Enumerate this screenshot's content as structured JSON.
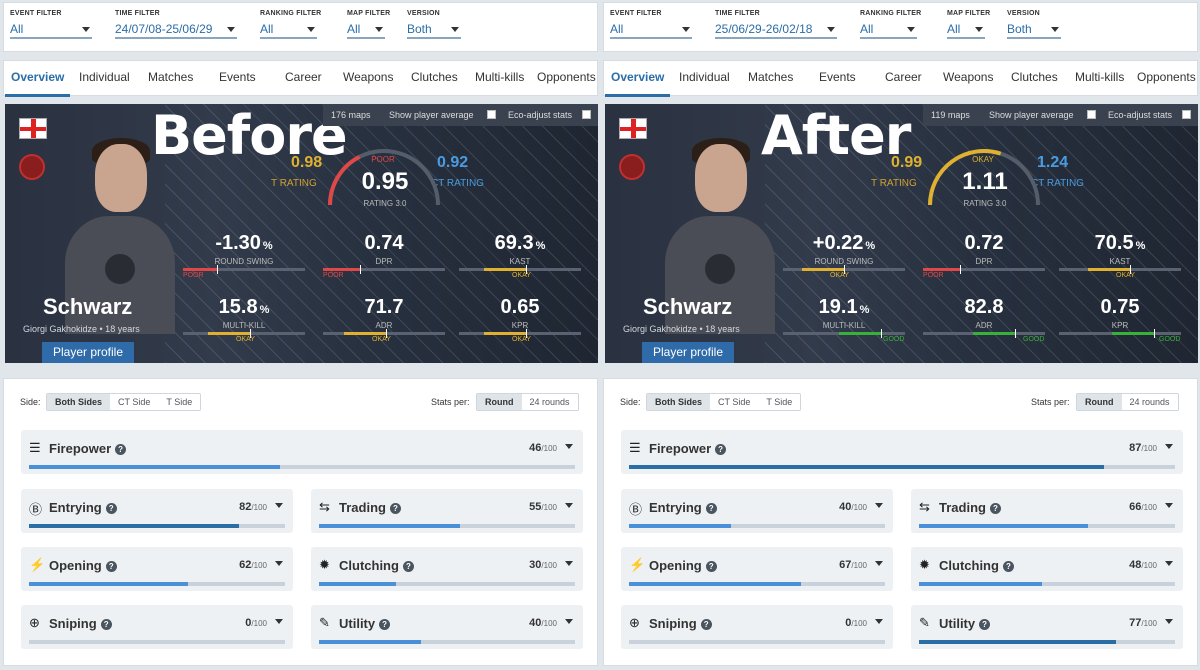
{
  "panels": [
    {
      "overlay": "Before",
      "filters": [
        {
          "label": "EVENT FILTER",
          "value": "All"
        },
        {
          "label": "TIME FILTER",
          "value": "24/07/08-25/06/29"
        },
        {
          "label": "RANKING FILTER",
          "value": "All"
        },
        {
          "label": "MAP FILTER",
          "value": "All"
        },
        {
          "label": "VERSION",
          "value": "Both"
        }
      ],
      "tabs": [
        "Overview",
        "Individual",
        "Matches",
        "Events",
        "Career",
        "Weapons",
        "Clutches",
        "Multi-kills",
        "Opponents"
      ],
      "maps": "176 maps",
      "show_avg": "Show player average",
      "eco": "Eco-adjust stats",
      "t_rating": "0.98",
      "t_rating_label": "T RATING",
      "ct_rating": "0.92",
      "ct_rating_label": "CT RATING",
      "rating": "0.95",
      "rating_status": "POOR",
      "rating_label": "RATING 3.0",
      "rating_color": "#e04848",
      "rating_fraction": 0.35,
      "player": {
        "nick": "Schwarz",
        "sub": "Giorgi Gakhokidze • 18 years",
        "profile": "Player profile"
      },
      "stats": [
        {
          "value": "-1.30",
          "unit": "%",
          "label": "ROUND SWING",
          "status": "POOR",
          "color": "#e04848",
          "fill": 0.28
        },
        {
          "value": "0.74",
          "unit": "",
          "label": "DPR",
          "status": "POOR",
          "color": "#e04848",
          "fill": 0.3
        },
        {
          "value": "69.3",
          "unit": "%",
          "label": "KAST",
          "status": "OKAY",
          "color": "#e0b030",
          "fill": 0.55
        },
        {
          "value": "15.8",
          "unit": "%",
          "label": "MULTI-KILL",
          "status": "OKAY",
          "color": "#e0b030",
          "fill": 0.55
        },
        {
          "value": "71.7",
          "unit": "",
          "label": "ADR",
          "status": "OKAY",
          "color": "#e0b030",
          "fill": 0.52
        },
        {
          "value": "0.65",
          "unit": "",
          "label": "KPR",
          "status": "OKAY",
          "color": "#e0b030",
          "fill": 0.55
        }
      ],
      "side_label": "Side:",
      "sides": [
        "Both Sides",
        "CT Side",
        "T Side"
      ],
      "stats_per": "Stats per:",
      "per": [
        "Round",
        "24 rounds"
      ],
      "cards": [
        {
          "icon": "☰",
          "name": "Firepower",
          "score": "46",
          "max": "/100",
          "fraction": 0.46
        },
        {
          "icon": "Ⓑ",
          "name": "Entrying",
          "score": "82",
          "max": "/100",
          "fraction": 0.82
        },
        {
          "icon": "⇆",
          "name": "Trading",
          "score": "55",
          "max": "/100",
          "fraction": 0.55
        },
        {
          "icon": "⚡",
          "name": "Opening",
          "score": "62",
          "max": "/100",
          "fraction": 0.62
        },
        {
          "icon": "✹",
          "name": "Clutching",
          "score": "30",
          "max": "/100",
          "fraction": 0.3
        },
        {
          "icon": "⊕",
          "name": "Sniping",
          "score": "0",
          "max": "/100",
          "fraction": 0.0
        },
        {
          "icon": "✎",
          "name": "Utility",
          "score": "40",
          "max": "/100",
          "fraction": 0.4
        }
      ]
    },
    {
      "overlay": "After",
      "filters": [
        {
          "label": "EVENT FILTER",
          "value": "All"
        },
        {
          "label": "TIME FILTER",
          "value": "25/06/29-26/02/18"
        },
        {
          "label": "RANKING FILTER",
          "value": "All"
        },
        {
          "label": "MAP FILTER",
          "value": "All"
        },
        {
          "label": "VERSION",
          "value": "Both"
        }
      ],
      "tabs": [
        "Overview",
        "Individual",
        "Matches",
        "Events",
        "Career",
        "Weapons",
        "Clutches",
        "Multi-kills",
        "Opponents"
      ],
      "maps": "119 maps",
      "show_avg": "Show player average",
      "eco": "Eco-adjust stats",
      "t_rating": "0.99",
      "t_rating_label": "T RATING",
      "ct_rating": "1.24",
      "ct_rating_label": "CT RATING",
      "rating": "1.11",
      "rating_status": "OKAY",
      "rating_label": "RATING 3.0",
      "rating_color": "#e0b030",
      "rating_fraction": 0.6,
      "player": {
        "nick": "Schwarz",
        "sub": "Giorgi Gakhokidze • 18 years",
        "profile": "Player profile"
      },
      "stats": [
        {
          "value": "+0.22",
          "unit": "%",
          "label": "ROUND SWING",
          "status": "OKAY",
          "color": "#e0b030",
          "fill": 0.5
        },
        {
          "value": "0.72",
          "unit": "",
          "label": "DPR",
          "status": "POOR",
          "color": "#e04848",
          "fill": 0.3
        },
        {
          "value": "70.5",
          "unit": "%",
          "label": "KAST",
          "status": "OKAY",
          "color": "#e0b030",
          "fill": 0.58
        },
        {
          "value": "19.1",
          "unit": "%",
          "label": "MULTI-KILL",
          "status": "GOOD",
          "color": "#39b039",
          "fill": 0.8
        },
        {
          "value": "82.8",
          "unit": "",
          "label": "ADR",
          "status": "GOOD",
          "color": "#39b039",
          "fill": 0.75
        },
        {
          "value": "0.75",
          "unit": "",
          "label": "KPR",
          "status": "GOOD",
          "color": "#39b039",
          "fill": 0.78
        }
      ],
      "side_label": "Side:",
      "sides": [
        "Both Sides",
        "CT Side",
        "T Side"
      ],
      "stats_per": "Stats per:",
      "per": [
        "Round",
        "24 rounds"
      ],
      "cards": [
        {
          "icon": "☰",
          "name": "Firepower",
          "score": "87",
          "max": "/100",
          "fraction": 0.87
        },
        {
          "icon": "Ⓑ",
          "name": "Entrying",
          "score": "40",
          "max": "/100",
          "fraction": 0.4
        },
        {
          "icon": "⇆",
          "name": "Trading",
          "score": "66",
          "max": "/100",
          "fraction": 0.66
        },
        {
          "icon": "⚡",
          "name": "Opening",
          "score": "67",
          "max": "/100",
          "fraction": 0.67
        },
        {
          "icon": "✹",
          "name": "Clutching",
          "score": "48",
          "max": "/100",
          "fraction": 0.48
        },
        {
          "icon": "⊕",
          "name": "Sniping",
          "score": "0",
          "max": "/100",
          "fraction": 0.0
        },
        {
          "icon": "✎",
          "name": "Utility",
          "score": "77",
          "max": "/100",
          "fraction": 0.77
        }
      ]
    }
  ],
  "colors": {
    "accent": "#2b6ea6",
    "bar_fill": "#4a90d9",
    "bar_fill_strong": "#2b6ea6"
  }
}
